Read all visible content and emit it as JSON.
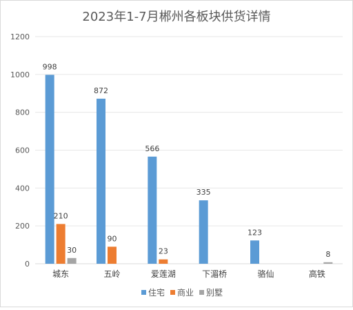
{
  "chart_data": {
    "type": "bar",
    "title": "2023年1-7月郴州各板块供货详情",
    "xlabel": "",
    "ylabel": "",
    "ylim": [
      0,
      1200
    ],
    "yticks": [
      0,
      200,
      400,
      600,
      800,
      1000,
      1200
    ],
    "grid": true,
    "legend_position": "bottom",
    "categories": [
      "城东",
      "五岭",
      "爱莲湖",
      "下湄桥",
      "骆仙",
      "高铁"
    ],
    "series": [
      {
        "name": "住宅",
        "color": "#5b9bd5",
        "values": [
          998,
          872,
          566,
          335,
          123,
          null
        ]
      },
      {
        "name": "商业",
        "color": "#ed7d31",
        "values": [
          210,
          90,
          23,
          null,
          null,
          null
        ]
      },
      {
        "name": "别墅",
        "color": "#a5a5a5",
        "values": [
          30,
          null,
          null,
          null,
          null,
          8
        ]
      }
    ]
  }
}
